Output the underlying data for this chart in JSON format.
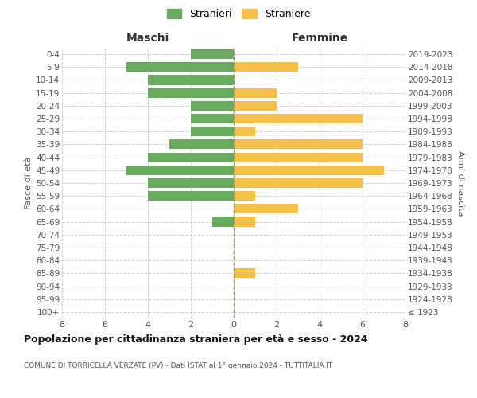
{
  "age_groups": [
    "100+",
    "95-99",
    "90-94",
    "85-89",
    "80-84",
    "75-79",
    "70-74",
    "65-69",
    "60-64",
    "55-59",
    "50-54",
    "45-49",
    "40-44",
    "35-39",
    "30-34",
    "25-29",
    "20-24",
    "15-19",
    "10-14",
    "5-9",
    "0-4"
  ],
  "birth_years": [
    "≤ 1923",
    "1924-1928",
    "1929-1933",
    "1934-1938",
    "1939-1943",
    "1944-1948",
    "1949-1953",
    "1954-1958",
    "1959-1963",
    "1964-1968",
    "1969-1973",
    "1974-1978",
    "1979-1983",
    "1984-1988",
    "1989-1993",
    "1994-1998",
    "1999-2003",
    "2004-2008",
    "2009-2013",
    "2014-2018",
    "2019-2023"
  ],
  "males": [
    0,
    0,
    0,
    0,
    0,
    0,
    0,
    1,
    0,
    4,
    4,
    5,
    4,
    3,
    2,
    2,
    2,
    4,
    4,
    5,
    2
  ],
  "females": [
    0,
    0,
    0,
    1,
    0,
    0,
    0,
    1,
    3,
    1,
    6,
    7,
    6,
    6,
    1,
    6,
    2,
    2,
    0,
    3,
    0
  ],
  "male_color": "#6aaa5e",
  "female_color": "#f5c04a",
  "title": "Popolazione per cittadinanza straniera per età e sesso - 2024",
  "subtitle": "COMUNE DI TORRICELLA VERZATE (PV) - Dati ISTAT al 1° gennaio 2024 - TUTTITALIA.IT",
  "legend_male": "Stranieri",
  "legend_female": "Straniere",
  "xlabel_left": "Maschi",
  "xlabel_right": "Femmine",
  "ylabel_left": "Fasce di età",
  "ylabel_right": "Anni di nascita",
  "xlim": 8,
  "background_color": "#ffffff",
  "grid_color": "#cccccc",
  "bar_height": 0.75
}
